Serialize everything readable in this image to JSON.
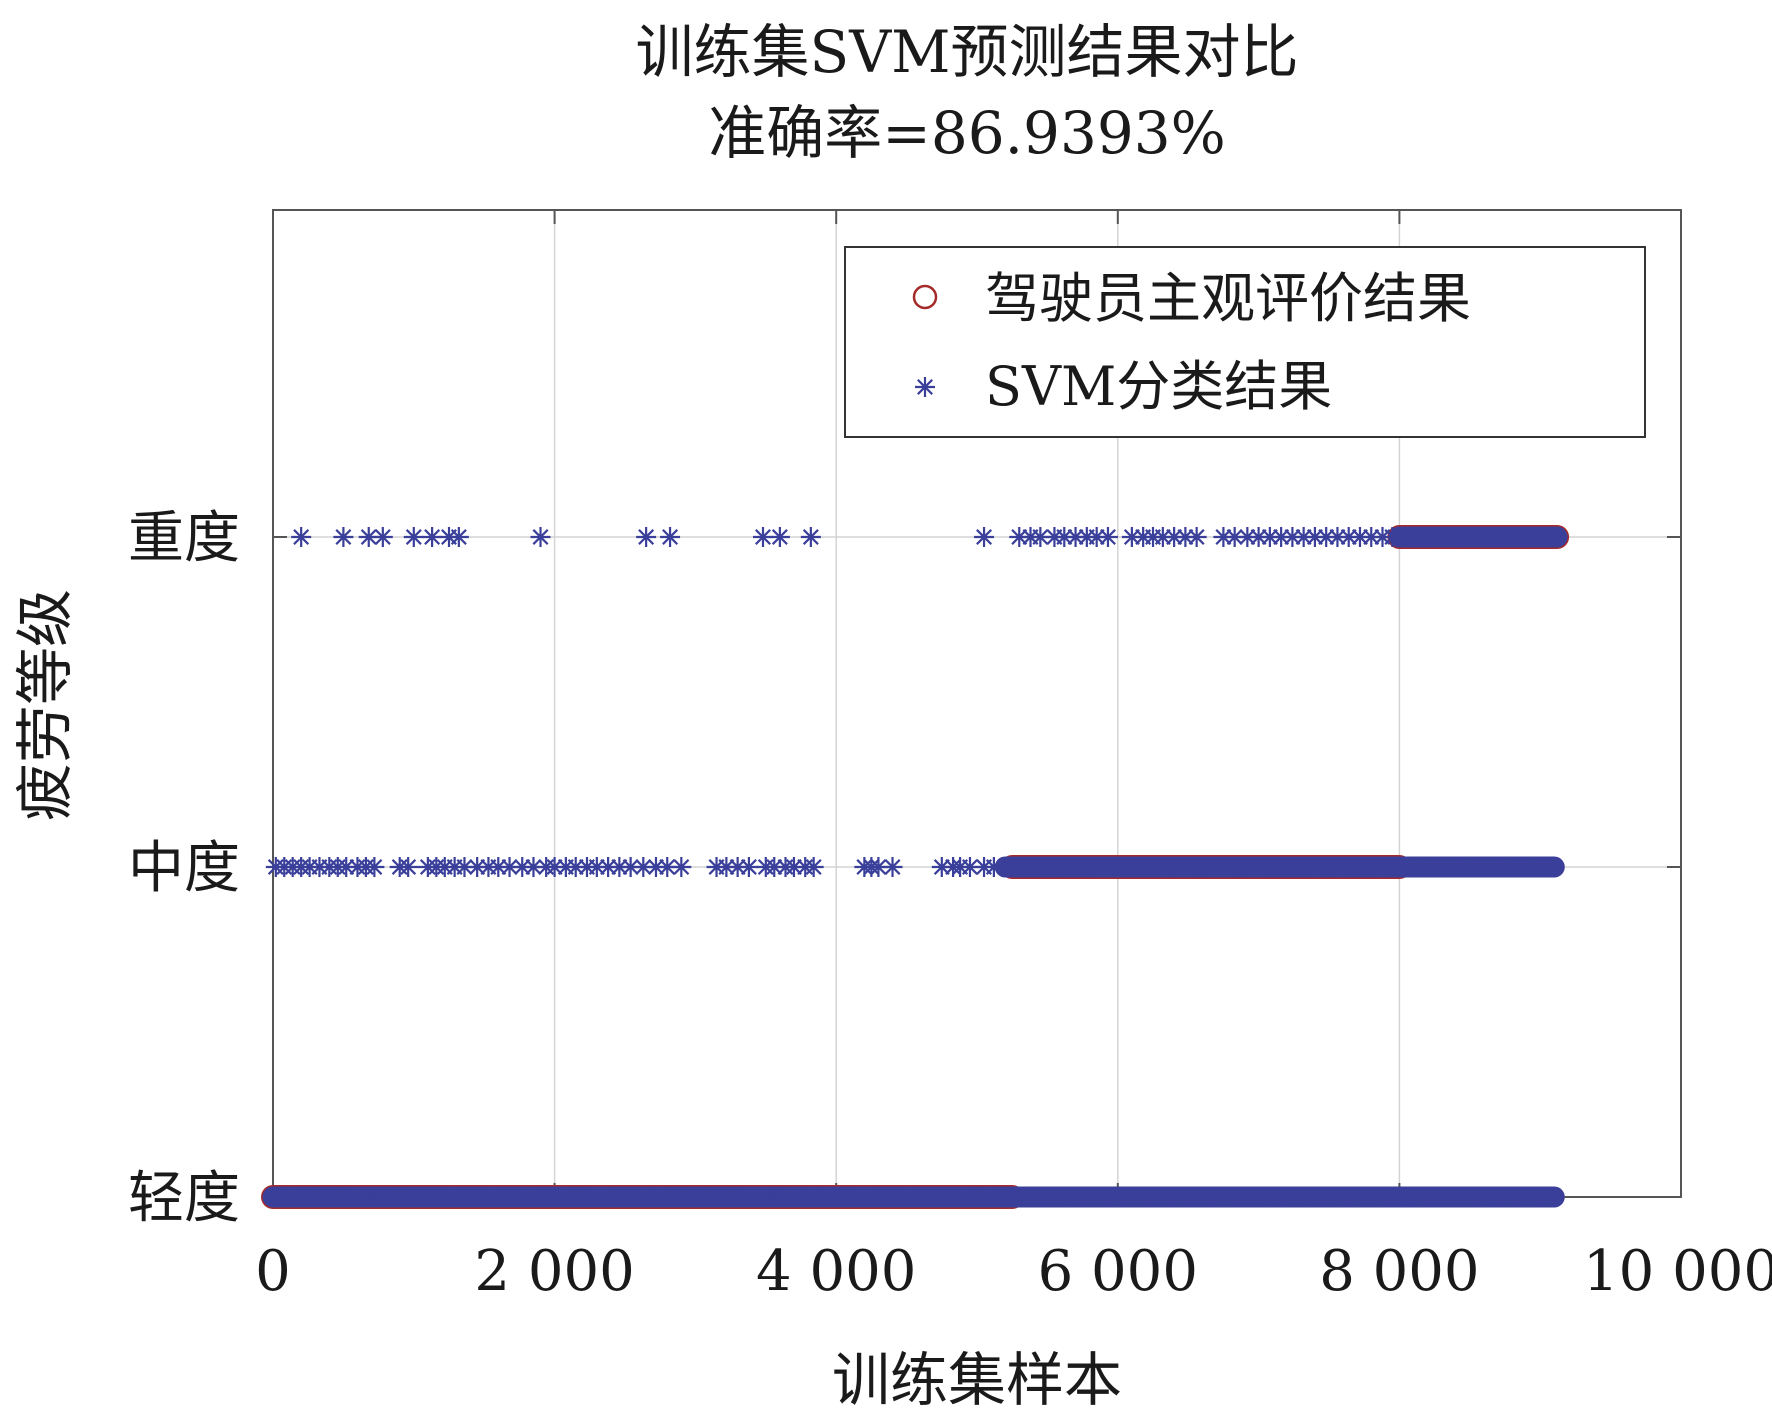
{
  "chart_data": {
    "type": "scatter",
    "title": [
      "训练集SVM预测结果对比",
      "准确率=86.9393%"
    ],
    "xlabel": "训练集样本",
    "ylabel": "疲劳等级",
    "xlim": [
      0,
      10000
    ],
    "ylim": [
      1,
      3
    ],
    "xticks": [
      0,
      2000,
      4000,
      6000,
      8000,
      10000
    ],
    "xtick_labels": [
      "0",
      "2 000",
      "4 000",
      "6 000",
      "8 000",
      "10 000"
    ],
    "yticks": [
      1,
      2,
      3
    ],
    "ytick_labels": [
      "轻度",
      "中度",
      "重度"
    ],
    "grid": true,
    "legend_position": "top-right",
    "colors": {
      "subjective": "#a52a2a",
      "svm": "#3a3f9a"
    },
    "series": [
      {
        "name": "驾驶员主观评价结果",
        "marker": "circle",
        "segments": [
          {
            "y": 1,
            "x_start": 0,
            "x_end": 5250
          },
          {
            "y": 2,
            "x_start": 5250,
            "x_end": 8000
          },
          {
            "y": 3,
            "x_start": 8000,
            "x_end": 9120
          }
        ]
      },
      {
        "name": "SVM分类结果",
        "marker": "asterisk",
        "dense_segments": [
          {
            "y": 1,
            "x_start": 0,
            "x_end": 9100
          },
          {
            "y": 2,
            "x_start": 5200,
            "x_end": 9100
          },
          {
            "y": 3,
            "x_start": 8000,
            "x_end": 9120
          }
        ],
        "scattered_points": [
          {
            "y": 3,
            "x": [
              200,
              500,
              680,
              780,
              1000,
              1130,
              1250,
              1320,
              1900,
              2650,
              2820,
              3480,
              3600,
              3820,
              5050,
              5300,
              5380,
              5450,
              5550,
              5620,
              5700,
              5780,
              5850,
              5930,
              6100,
              6180,
              6250,
              6320,
              6400,
              6480,
              6560,
              6750,
              6830,
              6920,
              7000,
              7080,
              7160,
              7240,
              7320,
              7400,
              7480,
              7560,
              7640,
              7720,
              7800,
              7880,
              7950
            ]
          },
          {
            "y": 2,
            "x": [
              20,
              80,
              140,
              200,
              260,
              330,
              400,
              460,
              520,
              600,
              660,
              720,
              900,
              960,
              1100,
              1160,
              1220,
              1290,
              1360,
              1450,
              1530,
              1600,
              1680,
              1770,
              1850,
              1940,
              2000,
              2080,
              2150,
              2230,
              2300,
              2380,
              2460,
              2540,
              2630,
              2720,
              2800,
              2900,
              3150,
              3220,
              3300,
              3380,
              3500,
              3560,
              3640,
              3700,
              3780,
              3840,
              4200,
              4250,
              4300,
              4400,
              4750,
              4830,
              4880,
              4950,
              5050,
              5120
            ]
          }
        ]
      }
    ]
  }
}
